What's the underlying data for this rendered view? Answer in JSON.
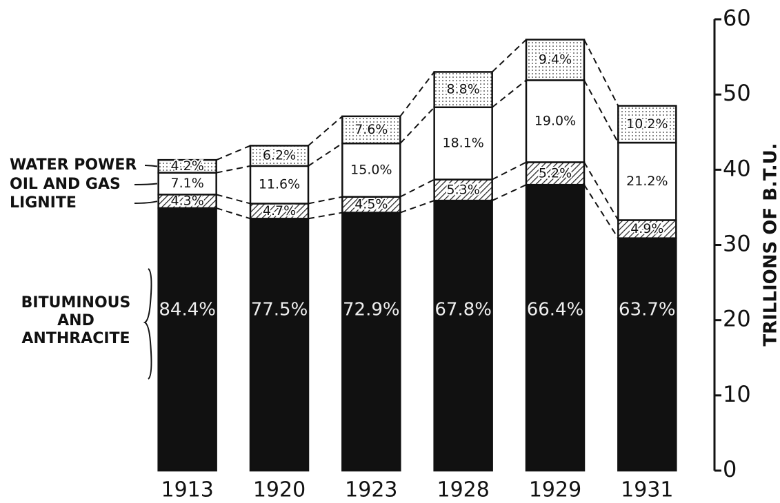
{
  "chart_data": {
    "type": "stacked-bar",
    "y_label": "TRILLIONS OF B.T.U.",
    "categories": [
      "1913",
      "1920",
      "1923",
      "1928",
      "1929",
      "1931"
    ],
    "ylim": [
      0,
      60
    ],
    "yticks": [
      0,
      10,
      20,
      30,
      40,
      50,
      60
    ],
    "series": [
      {
        "name": "BITUMINOUS AND ANTHRACITE",
        "color": "#111111",
        "pattern": "solid",
        "values": [
          34.9,
          33.5,
          34.3,
          35.9,
          38.0,
          30.9
        ],
        "share_labels": [
          "84.4%",
          "77.5%",
          "72.9%",
          "67.8%",
          "66.4%",
          "63.7%"
        ]
      },
      {
        "name": "LIGNITE",
        "color": "#ffffff",
        "pattern": "hatch",
        "values": [
          1.8,
          2.0,
          2.1,
          2.8,
          3.0,
          2.4
        ],
        "share_labels": [
          "4.3%",
          "4.7%",
          "4.5%",
          "5.3%",
          "5.2%",
          "4.9%"
        ]
      },
      {
        "name": "OIL AND GAS",
        "color": "#ffffff",
        "pattern": "solid",
        "values": [
          2.9,
          5.0,
          7.1,
          9.6,
          10.9,
          10.3
        ],
        "share_labels": [
          "7.1%",
          "11.6%",
          "15.0%",
          "18.1%",
          "19.0%",
          "21.2%"
        ]
      },
      {
        "name": "WATER POWER",
        "color": "#ffffff",
        "pattern": "dots",
        "values": [
          1.7,
          2.7,
          3.6,
          4.7,
          5.4,
          4.9
        ],
        "share_labels": [
          "4.2%",
          "6.2%",
          "7.6%",
          "8.8%",
          "9.4%",
          "10.2%"
        ]
      }
    ]
  }
}
